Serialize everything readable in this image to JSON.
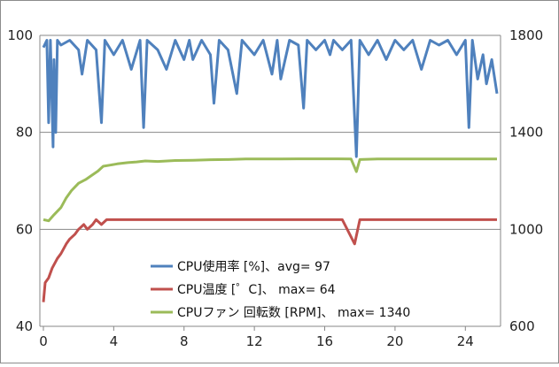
{
  "chart_data": {
    "type": "line",
    "xlim": [
      -0.2,
      26
    ],
    "x_ticks": [
      "0",
      "4",
      "8",
      "12",
      "16",
      "20",
      "24"
    ],
    "y_left": {
      "lim": [
        40,
        100
      ],
      "ticks": [
        "40",
        "60",
        "80",
        "100"
      ]
    },
    "y_right": {
      "lim": [
        600,
        1800
      ],
      "ticks": [
        "600",
        "1000",
        "1400",
        "1800"
      ]
    },
    "grid": "horizontal",
    "legend_position": "bottom-center",
    "series": [
      {
        "name": "CPU使用率 [%]、avg= 97",
        "axis": "left",
        "color": "#4f81bd",
        "points": [
          [
            0.0,
            97.5
          ],
          [
            0.2,
            99
          ],
          [
            0.3,
            82
          ],
          [
            0.4,
            99
          ],
          [
            0.55,
            77
          ],
          [
            0.6,
            95
          ],
          [
            0.7,
            80
          ],
          [
            0.8,
            99
          ],
          [
            1.0,
            98
          ],
          [
            1.5,
            99
          ],
          [
            2.0,
            97
          ],
          [
            2.2,
            92
          ],
          [
            2.5,
            99
          ],
          [
            3.0,
            97
          ],
          [
            3.3,
            82
          ],
          [
            3.5,
            99
          ],
          [
            4.0,
            96
          ],
          [
            4.5,
            99
          ],
          [
            5.0,
            93
          ],
          [
            5.5,
            99
          ],
          [
            5.7,
            81
          ],
          [
            5.9,
            99
          ],
          [
            6.5,
            97
          ],
          [
            7.0,
            93
          ],
          [
            7.5,
            99
          ],
          [
            8.0,
            95
          ],
          [
            8.3,
            99
          ],
          [
            8.5,
            95
          ],
          [
            9.0,
            99
          ],
          [
            9.5,
            96
          ],
          [
            9.7,
            86
          ],
          [
            10.0,
            99
          ],
          [
            10.5,
            97
          ],
          [
            11.0,
            88
          ],
          [
            11.3,
            99
          ],
          [
            12.0,
            96
          ],
          [
            12.5,
            99
          ],
          [
            13.0,
            92
          ],
          [
            13.3,
            99
          ],
          [
            13.5,
            91
          ],
          [
            14.0,
            99
          ],
          [
            14.5,
            98
          ],
          [
            14.8,
            85
          ],
          [
            15.0,
            99
          ],
          [
            15.5,
            97
          ],
          [
            16.0,
            99
          ],
          [
            16.3,
            96
          ],
          [
            16.5,
            99
          ],
          [
            17.0,
            97
          ],
          [
            17.5,
            99
          ],
          [
            17.8,
            75
          ],
          [
            18.0,
            99
          ],
          [
            18.5,
            96
          ],
          [
            19.0,
            99
          ],
          [
            19.5,
            95
          ],
          [
            20.0,
            99
          ],
          [
            20.5,
            97
          ],
          [
            21.0,
            99
          ],
          [
            21.5,
            93
          ],
          [
            22.0,
            99
          ],
          [
            22.5,
            98
          ],
          [
            23.0,
            99
          ],
          [
            23.5,
            96
          ],
          [
            24.0,
            99
          ],
          [
            24.2,
            81
          ],
          [
            24.4,
            99
          ],
          [
            24.7,
            91
          ],
          [
            25.0,
            96
          ],
          [
            25.2,
            90
          ],
          [
            25.5,
            95
          ],
          [
            25.8,
            88
          ]
        ]
      },
      {
        "name": "CPU温度 [゜C]、 max= 64",
        "axis": "left",
        "color": "#c0504d",
        "points": [
          [
            0.0,
            45
          ],
          [
            0.1,
            49
          ],
          [
            0.3,
            50
          ],
          [
            0.5,
            52
          ],
          [
            0.8,
            54
          ],
          [
            1.0,
            55
          ],
          [
            1.3,
            57
          ],
          [
            1.5,
            58
          ],
          [
            1.8,
            59
          ],
          [
            2.0,
            60
          ],
          [
            2.3,
            61
          ],
          [
            2.5,
            60
          ],
          [
            2.8,
            61
          ],
          [
            3.0,
            62
          ],
          [
            3.3,
            61
          ],
          [
            3.6,
            62
          ],
          [
            4.0,
            62
          ],
          [
            4.5,
            62
          ],
          [
            5.0,
            62
          ],
          [
            5.5,
            62
          ],
          [
            6.0,
            62
          ],
          [
            6.5,
            62
          ],
          [
            7.0,
            62
          ],
          [
            8.0,
            62
          ],
          [
            9.0,
            62
          ],
          [
            10.0,
            62
          ],
          [
            11.0,
            62
          ],
          [
            12.0,
            62
          ],
          [
            13.0,
            62
          ],
          [
            14.0,
            62
          ],
          [
            15.0,
            62
          ],
          [
            16.0,
            62
          ],
          [
            17.0,
            62
          ],
          [
            17.7,
            57
          ],
          [
            18.0,
            62
          ],
          [
            19.0,
            62
          ],
          [
            20.0,
            62
          ],
          [
            21.0,
            62
          ],
          [
            22.0,
            62
          ],
          [
            23.0,
            62
          ],
          [
            24.0,
            62
          ],
          [
            25.0,
            62
          ],
          [
            25.8,
            62
          ]
        ]
      },
      {
        "name": "CPUファン 回転数 [RPM]、 max= 1340",
        "axis": "right",
        "color": "#9bbb59",
        "points": [
          [
            0.0,
            1040
          ],
          [
            0.3,
            1035
          ],
          [
            0.6,
            1060
          ],
          [
            1.0,
            1090
          ],
          [
            1.3,
            1130
          ],
          [
            1.6,
            1160
          ],
          [
            2.0,
            1190
          ],
          [
            2.4,
            1205
          ],
          [
            2.8,
            1225
          ],
          [
            3.1,
            1240
          ],
          [
            3.4,
            1260
          ],
          [
            3.8,
            1265
          ],
          [
            4.2,
            1270
          ],
          [
            4.8,
            1275
          ],
          [
            5.3,
            1278
          ],
          [
            5.8,
            1282
          ],
          [
            6.5,
            1280
          ],
          [
            7.5,
            1284
          ],
          [
            8.5,
            1285
          ],
          [
            9.5,
            1287
          ],
          [
            10.5,
            1288
          ],
          [
            11.5,
            1290
          ],
          [
            12.5,
            1290
          ],
          [
            13.5,
            1290
          ],
          [
            14.5,
            1291
          ],
          [
            15.5,
            1291
          ],
          [
            16.5,
            1291
          ],
          [
            17.5,
            1290
          ],
          [
            17.8,
            1238
          ],
          [
            18.0,
            1288
          ],
          [
            19.0,
            1290
          ],
          [
            20.0,
            1290
          ],
          [
            21.0,
            1290
          ],
          [
            22.0,
            1290
          ],
          [
            23.0,
            1290
          ],
          [
            24.0,
            1290
          ],
          [
            25.0,
            1290
          ],
          [
            25.8,
            1290
          ]
        ]
      }
    ]
  }
}
